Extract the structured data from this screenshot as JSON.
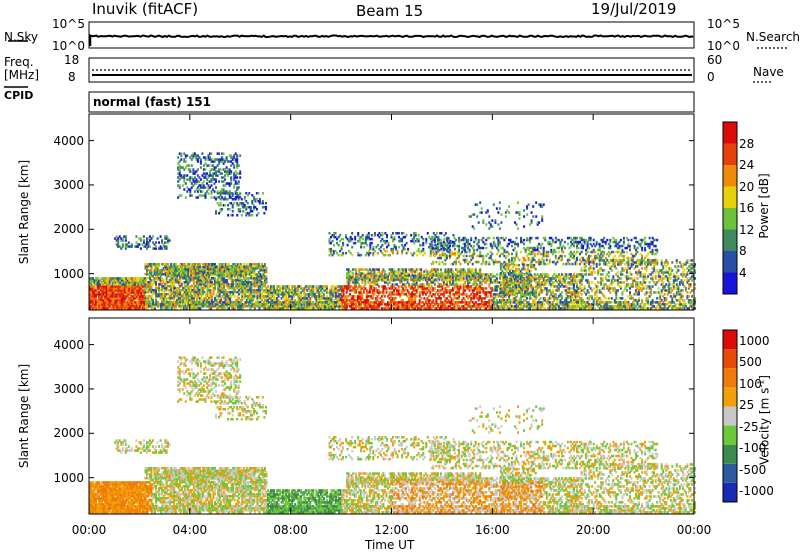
{
  "header": {
    "station": "Inuvik (fitACF)",
    "beam": "Beam 15",
    "date": "19/Jul/2019"
  },
  "noise_panel": {
    "left_label": "N.Sky",
    "left_ticks": [
      "10^5",
      "10^0"
    ],
    "right_label": "N.Search",
    "right_ticks": [
      "10^5",
      "10^0"
    ]
  },
  "freq_panel": {
    "left_label": "Freq.",
    "left_unit": "[MHz]",
    "left_ticks": [
      "18",
      "8"
    ],
    "right_label": "Nave",
    "right_ticks": [
      "60",
      "0"
    ]
  },
  "cpid_panel": {
    "label": "CPID",
    "mode": "normal (fast) 151"
  },
  "chart_data": [
    {
      "type": "heatmap",
      "quantity": "Power",
      "xlabel": "Time UT",
      "ylabel": "Slant Range [km]",
      "xlim": [
        0,
        24
      ],
      "ylim": [
        180,
        4600
      ],
      "yticks": [
        1000,
        2000,
        3000,
        4000
      ],
      "colorbar": {
        "label": "Power [dB]",
        "ticks": [
          "4",
          "8",
          "12",
          "16",
          "20",
          "24",
          "28"
        ],
        "colors": [
          "#1a14d9",
          "#2a4fa8",
          "#3e8a5e",
          "#6cc23a",
          "#e6d20a",
          "#f08a0a",
          "#e6410a",
          "#dd0a0a"
        ]
      }
    },
    {
      "type": "heatmap",
      "quantity": "Velocity",
      "xlabel": "Time UT",
      "ylabel": "Slant Range [km]",
      "xlim": [
        0,
        24
      ],
      "ylim": [
        180,
        4600
      ],
      "yticks": [
        1000,
        2000,
        3000,
        4000
      ],
      "xticks": [
        "00:00",
        "04:00",
        "08:00",
        "12:00",
        "16:00",
        "20:00",
        "00:00"
      ],
      "colorbar": {
        "label": "Velocity [m s^-1]",
        "ticks": [
          "1000",
          "500",
          "100",
          "25",
          "-25",
          "-100",
          "-500",
          "-1000"
        ],
        "colors": [
          "#1a2ab4",
          "#2a5aa0",
          "#3e8a4e",
          "#6cc83a",
          "#c8c8c8",
          "#f0a00a",
          "#f07a0a",
          "#e84a0a",
          "#dd0a0a"
        ]
      }
    }
  ]
}
